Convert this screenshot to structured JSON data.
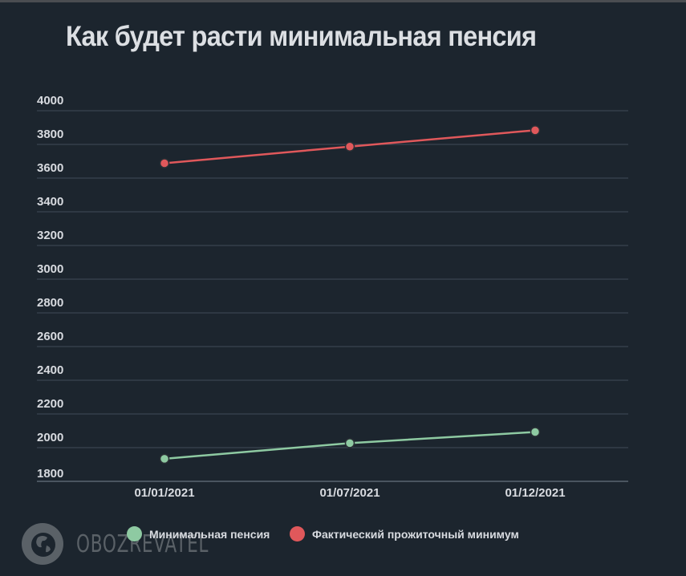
{
  "title": "Как будет расти минимальная пенсия",
  "y_ticks": [
    "4000",
    "3800",
    "3600",
    "3400",
    "3200",
    "3000",
    "2800",
    "2600",
    "2400",
    "2200",
    "2000",
    "1800"
  ],
  "x_ticks": [
    "01/01/2021",
    "01/07/2021",
    "01/12/2021"
  ],
  "legend": [
    {
      "label": "Минимальная пенсия",
      "color": "#8ecaa2"
    },
    {
      "label": "Фактический прожиточный минимум",
      "color": "#e0585b"
    }
  ],
  "watermark": "OBOZREVATEL",
  "colors": {
    "background": "#1c252e",
    "grid": "#3a4550",
    "text": "#d8dbe0"
  },
  "chart_data": {
    "type": "line",
    "title": "Как будет расти минимальная пенсия",
    "x": [
      "01/01/2021",
      "01/07/2021",
      "01/12/2021"
    ],
    "series": [
      {
        "name": "Минимальная пенсия",
        "values": [
          1934,
          2027,
          2093
        ],
        "color": "#8ecaa2"
      },
      {
        "name": "Фактический прожиточный минимум",
        "values": [
          3688,
          3787,
          3884
        ],
        "color": "#e0585b"
      }
    ],
    "xlabel": "",
    "ylabel": "",
    "ylim": [
      1800,
      4000
    ],
    "yticks": [
      1800,
      2000,
      2200,
      2400,
      2600,
      2800,
      3000,
      3200,
      3400,
      3600,
      3800,
      4000
    ],
    "grid": true,
    "legend_position": "bottom"
  }
}
